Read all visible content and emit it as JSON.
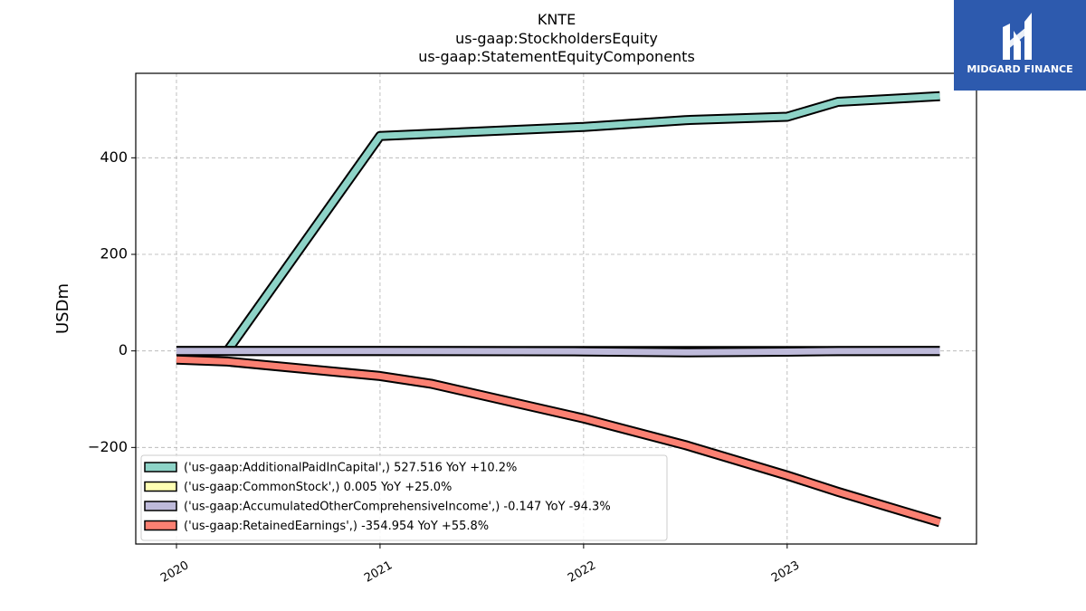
{
  "brand": {
    "name": "MIDGARD FINANCE",
    "bg": "#2d5aae"
  },
  "chart_data": {
    "type": "line",
    "title": [
      "KNTE",
      "us-gaap:StockholdersEquity",
      "us-gaap:StatementEquityComponents"
    ],
    "xlabel": "",
    "ylabel": "USDm",
    "xlim": [
      2019.8,
      2023.93
    ],
    "ylim": [
      -400,
      575
    ],
    "x_ticks": [
      2020,
      2021,
      2022,
      2023
    ],
    "x_tick_labels": [
      "2020",
      "2021",
      "2022",
      "2023"
    ],
    "y_ticks": [
      -200,
      0,
      200,
      400
    ],
    "y_tick_labels": [
      "−200",
      "0",
      "200",
      "400"
    ],
    "grid": true,
    "legend_position": "lower-left",
    "series": [
      {
        "name": "('us-gaap:AdditionalPaidInCapital',) 527.516 YoY +10.2%",
        "color": "#8dd3c7",
        "x": [
          2020.25,
          2021.0,
          2021.25,
          2022.0,
          2022.5,
          2023.0,
          2023.25,
          2023.75
        ],
        "y": [
          0,
          445,
          450,
          464,
          478,
          485,
          516,
          527.5
        ]
      },
      {
        "name": "('us-gaap:CommonStock',) 0.005 YoY +25.0%",
        "color": "#ffffb3",
        "x": [
          2020.0,
          2023.75
        ],
        "y": [
          0.004,
          0.005
        ]
      },
      {
        "name": "('us-gaap:AccumulatedOtherComprehensiveIncome',) -0.147 YoY -94.3%",
        "color": "#bebada",
        "x": [
          2020.0,
          2021.0,
          2022.0,
          2022.5,
          2023.0,
          2023.25,
          2023.75
        ],
        "y": [
          0,
          0,
          -1,
          -3,
          -1.5,
          -0.5,
          -0.147
        ]
      },
      {
        "name": "('us-gaap:RetainedEarnings',) -354.954 YoY +55.8%",
        "color": "#fb8072",
        "x": [
          2020.0,
          2020.25,
          2021.0,
          2021.25,
          2022.0,
          2022.5,
          2023.0,
          2023.25,
          2023.75
        ],
        "y": [
          -18,
          -22,
          -52,
          -68,
          -140,
          -195,
          -258,
          -292,
          -355
        ]
      }
    ]
  }
}
